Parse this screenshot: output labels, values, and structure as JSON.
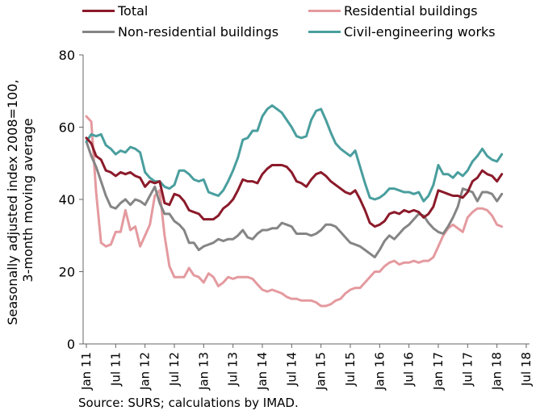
{
  "chart_data": {
    "type": "line",
    "ylabel": "Seasonally adjusted index 2008=100, 3-month moving average",
    "xlabel": "",
    "ylim": [
      0,
      80
    ],
    "yticks": [
      0,
      20,
      40,
      60,
      80
    ],
    "x_start": "2011-01",
    "x_end": "2018-07",
    "x_tick_labels": [
      "Jan 11",
      "Jul 11",
      "Jan 12",
      "Jul 12",
      "Jan 13",
      "Jul 13",
      "Jan 14",
      "Jul 14",
      "Jan 15",
      "Jul 15",
      "Jan 16",
      "Jul 16",
      "Jan 17",
      "Jul 17",
      "Jan 18",
      "Jul 18"
    ],
    "grid": false,
    "legend_placement": "top",
    "series": [
      {
        "name": "Total",
        "color": "#8b1a2a",
        "values": [
          57.0,
          55.5,
          52.0,
          51.0,
          48.0,
          47.5,
          46.5,
          47.5,
          47.0,
          47.5,
          46.5,
          46.0,
          43.5,
          45.0,
          44.5,
          45.0,
          39.0,
          38.5,
          41.5,
          41.0,
          39.5,
          37.0,
          36.5,
          36.0,
          34.5,
          34.5,
          34.5,
          35.5,
          37.5,
          38.5,
          40.0,
          42.5,
          45.5,
          45.0,
          45.0,
          44.5,
          47.0,
          48.5,
          49.5,
          49.5,
          49.5,
          49.0,
          47.5,
          45.0,
          44.5,
          43.5,
          45.5,
          47.0,
          47.5,
          46.5,
          45.0,
          44.0,
          43.0,
          42.0,
          41.5,
          42.5,
          40.0,
          37.0,
          33.5,
          32.5,
          33.0,
          34.0,
          36.0,
          36.5,
          36.0,
          37.0,
          36.5,
          37.0,
          36.5,
          35.0,
          36.0,
          38.0,
          42.5,
          42.0,
          41.5,
          41.0,
          41.0,
          40.5,
          42.0,
          45.0,
          46.0,
          48.0,
          47.0,
          46.5,
          45.0,
          47.0
        ]
      },
      {
        "name": "Residential buildings",
        "color": "#e49a9f",
        "values": [
          63.0,
          61.5,
          42.0,
          28.0,
          27.0,
          27.5,
          31.0,
          31.0,
          37.0,
          31.5,
          32.5,
          27.0,
          30.0,
          33.0,
          41.0,
          42.5,
          30.0,
          21.5,
          18.5,
          18.5,
          18.5,
          21.0,
          19.0,
          18.5,
          17.0,
          19.5,
          18.5,
          16.0,
          17.0,
          18.5,
          18.0,
          18.5,
          18.5,
          18.5,
          18.0,
          16.5,
          15.0,
          14.5,
          15.0,
          14.5,
          14.0,
          13.0,
          12.5,
          12.5,
          12.0,
          12.0,
          12.0,
          11.5,
          10.5,
          10.5,
          11.0,
          12.0,
          12.5,
          14.0,
          15.0,
          15.5,
          15.5,
          17.0,
          18.5,
          20.0,
          20.0,
          21.5,
          22.5,
          23.0,
          22.0,
          22.5,
          22.5,
          23.0,
          22.5,
          23.0,
          23.0,
          24.0,
          27.0,
          30.0,
          32.0,
          33.0,
          32.0,
          31.0,
          35.0,
          36.5,
          37.5,
          37.5,
          37.0,
          35.5,
          33.0,
          32.5
        ]
      },
      {
        "name": "Non-residential buildings",
        "color": "#858585",
        "values": [
          56.0,
          52.0,
          49.0,
          45.0,
          41.0,
          38.0,
          37.5,
          39.0,
          40.0,
          38.5,
          40.0,
          39.5,
          38.5,
          41.0,
          43.5,
          39.0,
          36.0,
          36.0,
          34.0,
          33.0,
          31.5,
          28.0,
          28.0,
          26.0,
          27.0,
          27.5,
          28.0,
          29.0,
          28.5,
          29.0,
          29.0,
          30.0,
          31.5,
          29.5,
          29.0,
          30.5,
          31.5,
          31.5,
          32.0,
          32.0,
          33.5,
          33.0,
          32.5,
          30.5,
          30.5,
          30.5,
          30.0,
          30.5,
          31.5,
          33.0,
          33.0,
          32.5,
          31.0,
          29.5,
          28.0,
          27.5,
          27.0,
          26.0,
          25.0,
          24.0,
          26.0,
          28.5,
          30.0,
          29.0,
          30.5,
          32.0,
          33.0,
          34.5,
          36.0,
          35.5,
          33.5,
          32.0,
          31.0,
          30.5,
          32.5,
          35.0,
          38.0,
          43.0,
          42.5,
          42.0,
          39.5,
          42.0,
          42.0,
          41.5,
          39.5,
          41.5
        ]
      },
      {
        "name": "Civil-engineering works",
        "color": "#4a9e9e",
        "values": [
          56.0,
          58.0,
          57.5,
          58.0,
          55.0,
          54.0,
          52.5,
          53.5,
          53.0,
          54.5,
          54.0,
          53.0,
          47.5,
          46.0,
          45.0,
          45.0,
          43.5,
          43.0,
          44.0,
          48.0,
          48.0,
          47.0,
          45.5,
          45.0,
          45.5,
          42.0,
          41.5,
          41.0,
          42.5,
          45.0,
          48.0,
          51.5,
          56.5,
          57.0,
          59.0,
          59.0,
          63.0,
          65.0,
          66.0,
          65.0,
          64.0,
          62.0,
          60.0,
          57.5,
          57.0,
          57.5,
          62.0,
          64.5,
          65.0,
          62.0,
          58.5,
          55.5,
          54.0,
          53.0,
          52.0,
          53.5,
          49.0,
          44.5,
          40.5,
          40.0,
          40.5,
          41.5,
          43.0,
          43.0,
          42.5,
          42.0,
          42.0,
          41.5,
          42.0,
          39.5,
          41.0,
          44.0,
          49.5,
          47.0,
          47.0,
          46.0,
          47.5,
          46.5,
          48.0,
          50.5,
          52.0,
          54.0,
          52.0,
          51.0,
          50.5,
          52.5
        ]
      }
    ],
    "source": "Source: SURS; calculations by IMAD."
  }
}
